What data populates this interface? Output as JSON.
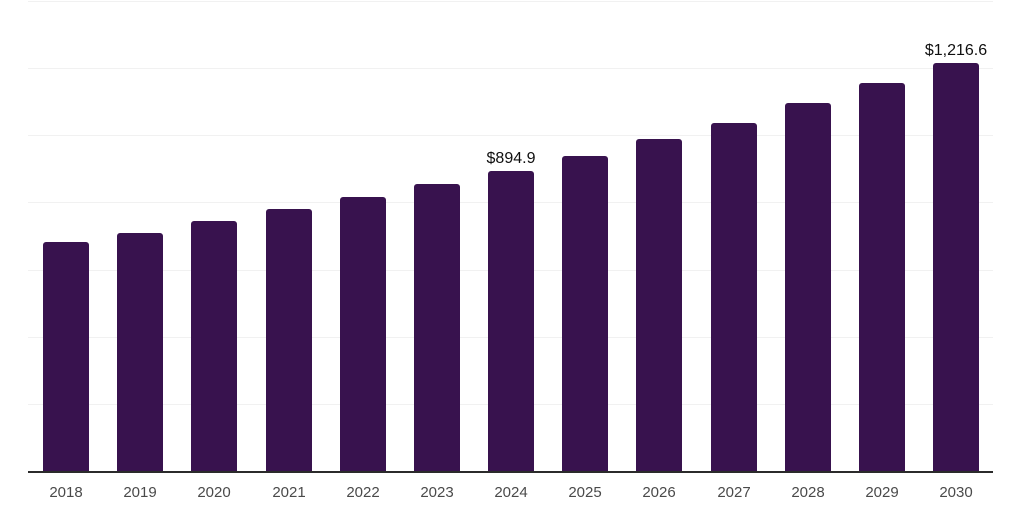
{
  "chart_data": {
    "type": "bar",
    "title": "",
    "xlabel": "",
    "ylabel": "",
    "categories": [
      "2018",
      "2019",
      "2020",
      "2021",
      "2022",
      "2023",
      "2024",
      "2025",
      "2026",
      "2027",
      "2028",
      "2029",
      "2030"
    ],
    "values": [
      681,
      710,
      746,
      779,
      817,
      856,
      894.9,
      939,
      990,
      1037,
      1097,
      1156,
      1216.6
    ],
    "value_labels": {
      "2024": "$894.9",
      "2030": "$1,216.6"
    },
    "ylim": [
      0,
      1400
    ],
    "gridline_step": 200,
    "grid": "horizontal-only",
    "legend": "none",
    "y_axis_tick_labels": "none",
    "colors": {
      "bar": "#38124E",
      "axis_line": "#2b2b2b",
      "gridline": "#f1f1f1",
      "x_tick_label": "#4a4a4a",
      "data_label": "#0f0f0f",
      "background": "#ffffff"
    }
  }
}
